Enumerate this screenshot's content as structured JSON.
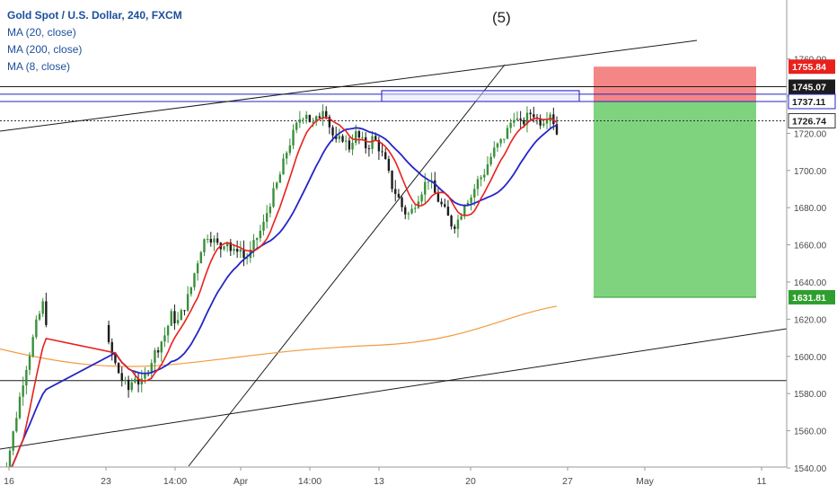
{
  "header": {
    "title": "Gold Spot / U.S. Dollar, 240, FXCM",
    "indicators": [
      "MA (20, close)",
      "MA (200, close)",
      "MA (8, close)"
    ]
  },
  "annotation": {
    "wave_label": "(5)"
  },
  "colors": {
    "up_candle": "#3a8f3a",
    "down_candle": "#1c1c1c",
    "ma8": "#e8211c",
    "ma20": "#2525c8",
    "ma200": "#f39a3e",
    "stop_zone": "#f25e5e",
    "target_zone": "#5fc85f",
    "resistance_box": "#3a3ad0"
  },
  "chart_data": {
    "type": "candlestick",
    "symbol": "Gold Spot / U.S. Dollar",
    "interval": "240",
    "x_tick_labels": [
      "16",
      "23",
      "14:00",
      "Apr",
      "14:00",
      "13",
      "20",
      "27",
      "May",
      "11"
    ],
    "y_tick_labels": [
      "1540.00",
      "1560.00",
      "1580.00",
      "1600.00",
      "1620.00",
      "1640.00",
      "1660.00",
      "1680.00",
      "1700.00",
      "1720.00",
      "1740.00",
      "1760.00"
    ],
    "ylim": [
      1530,
      1780
    ],
    "price_labels": [
      {
        "value": 1755.84,
        "text": "1755.84",
        "style": "red"
      },
      {
        "value": 1745.07,
        "text": "1745.07",
        "style": "black"
      },
      {
        "value": 1737.11,
        "text": "1737.11",
        "style": "blue"
      },
      {
        "value": 1726.74,
        "text": "1726.74",
        "style": "last"
      },
      {
        "value": 1631.81,
        "text": "1631.81",
        "style": "green"
      }
    ],
    "horizontal_levels": [
      {
        "value": 1745.07,
        "color": "#1c1c1c"
      },
      {
        "value": 1741,
        "color": "#2525c8"
      },
      {
        "value": 1737.11,
        "color": "#2525c8"
      },
      {
        "value": 1587,
        "color": "#1c1c1c"
      }
    ],
    "position_tool": {
      "type": "short",
      "entry": 1737.11,
      "stop": 1755.84,
      "target": 1631.81
    },
    "price_path": [
      [
        1551,
        1530
      ],
      [
        1552,
        1540
      ],
      [
        1553,
        1556
      ],
      [
        1554,
        1574
      ],
      [
        1555,
        1591
      ],
      [
        1556,
        1604
      ],
      [
        1557,
        1618
      ],
      [
        1558,
        1628
      ],
      [
        1559,
        1612
      ],
      [
        1560,
        1622
      ],
      [
        1561,
        1614
      ],
      [
        1562,
        1625
      ],
      [
        1563,
        1620
      ],
      [
        1564,
        1628
      ],
      [
        1565,
        1618
      ],
      [
        1566,
        1624
      ],
      [
        1567,
        1619
      ],
      [
        1568,
        1610
      ],
      [
        1569,
        1604
      ],
      [
        1570,
        1594
      ],
      [
        1571,
        1587
      ],
      [
        1572,
        1582
      ],
      [
        1573,
        1590
      ],
      [
        1574,
        1584
      ],
      [
        1575,
        1592
      ],
      [
        1576,
        1600
      ],
      [
        1577,
        1606
      ],
      [
        1578,
        1612
      ],
      [
        1579,
        1622
      ],
      [
        1580,
        1618
      ],
      [
        1581,
        1626
      ],
      [
        1582,
        1634
      ],
      [
        1583,
        1648
      ],
      [
        1584,
        1660
      ],
      [
        1585,
        1666
      ],
      [
        1586,
        1662
      ],
      [
        1587,
        1658
      ],
      [
        1588,
        1664
      ],
      [
        1589,
        1654
      ],
      [
        1590,
        1660
      ],
      [
        1591,
        1652
      ],
      [
        1592,
        1656
      ],
      [
        1593,
        1664
      ],
      [
        1594,
        1670
      ],
      [
        1595,
        1682
      ],
      [
        1596,
        1690
      ],
      [
        1597,
        1700
      ],
      [
        1598,
        1712
      ],
      [
        1599,
        1720
      ],
      [
        1600,
        1728
      ],
      [
        1601,
        1732
      ],
      [
        1602,
        1724
      ],
      [
        1603,
        1728
      ],
      [
        1604,
        1736
      ],
      [
        1605,
        1722
      ],
      [
        1606,
        1714
      ],
      [
        1607,
        1718
      ],
      [
        1608,
        1712
      ],
      [
        1609,
        1720
      ],
      [
        1610,
        1716
      ],
      [
        1611,
        1712
      ],
      [
        1612,
        1718
      ],
      [
        1613,
        1712
      ],
      [
        1614,
        1704
      ],
      [
        1615,
        1692
      ],
      [
        1616,
        1686
      ],
      [
        1617,
        1678
      ],
      [
        1618,
        1676
      ],
      [
        1619,
        1684
      ],
      [
        1620,
        1690
      ],
      [
        1621,
        1696
      ],
      [
        1622,
        1688
      ],
      [
        1623,
        1682
      ],
      [
        1624,
        1676
      ],
      [
        1625,
        1670
      ],
      [
        1626,
        1674
      ],
      [
        1627,
        1684
      ],
      [
        1628,
        1686
      ],
      [
        1629,
        1694
      ],
      [
        1630,
        1698
      ],
      [
        1631,
        1706
      ],
      [
        1632,
        1712
      ],
      [
        1633,
        1716
      ],
      [
        1634,
        1722
      ],
      [
        1635,
        1730
      ],
      [
        1636,
        1724
      ],
      [
        1637,
        1728
      ],
      [
        1638,
        1732
      ],
      [
        1639,
        1726
      ],
      [
        1640,
        1728
      ],
      [
        1641,
        1732
      ],
      [
        1642,
        1720
      ]
    ]
  },
  "drawings": {
    "wave5_box": {
      "price_top": 1741,
      "price_bottom": 1737.11
    }
  }
}
